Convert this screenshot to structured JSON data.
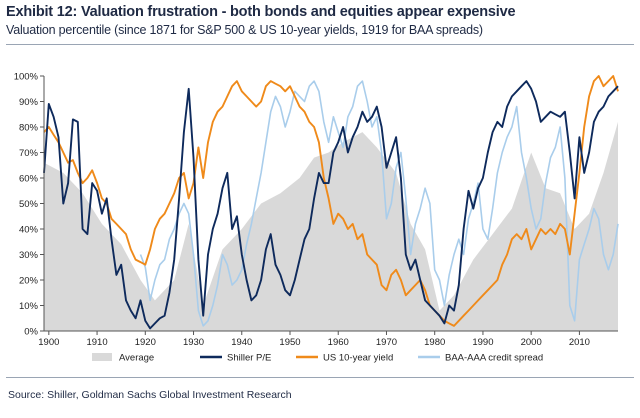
{
  "header": {
    "title": "Exhibit 12: Valuation frustration - both bonds and equities appear expensive",
    "subtitle": "Valuation percentile (since 1871 for S&P 500 & US 10-year yields, 1919 for BAA spreads)"
  },
  "footer": {
    "source": "Source: Shiller, Goldman Sachs Global Investment Research"
  },
  "colors": {
    "average": "#d9d9d9",
    "shiller": "#0e2a5c",
    "us10y": "#ef8a1a",
    "baa": "#a9cdeb",
    "axis": "#555555"
  },
  "chart_data": {
    "type": "line",
    "title": "Exhibit 12: Valuation frustration - both bonds and equities appear expensive",
    "subtitle": "Valuation percentile (since 1871 for S&P 500 & US 10-year yields, 1919 for BAA spreads)",
    "xlim": [
      1899,
      2018
    ],
    "ylim": [
      0,
      100
    ],
    "x_ticks": [
      1900,
      1910,
      1920,
      1930,
      1940,
      1950,
      1960,
      1970,
      1980,
      1990,
      2000,
      2010
    ],
    "x_tick_labels": [
      "1900",
      "1910",
      "1920",
      "1930",
      "1940",
      "1950",
      "1960",
      "1970",
      "1980",
      "1990",
      "2000",
      "2010"
    ],
    "y_ticks": [
      0,
      10,
      20,
      30,
      40,
      50,
      60,
      70,
      80,
      90,
      100
    ],
    "y_tick_labels": [
      "0%",
      "10%",
      "20%",
      "30%",
      "40%",
      "50%",
      "60%",
      "70%",
      "80%",
      "90%",
      "100%"
    ],
    "legend_position": "bottom",
    "grid": false,
    "series": [
      {
        "name": "Average",
        "style": "area",
        "x": [
          1899,
          1903,
          1907,
          1911,
          1915,
          1919,
          1922,
          1926,
          1929,
          1932,
          1936,
          1940,
          1944,
          1948,
          1952,
          1955,
          1958,
          1961,
          1965,
          1968,
          1972,
          1975,
          1978,
          1981,
          1984,
          1988,
          1992,
          1996,
          2000,
          2003,
          2006,
          2009,
          2012,
          2015,
          2018
        ],
        "y": [
          66,
          62,
          54,
          42,
          34,
          20,
          12,
          20,
          42,
          10,
          32,
          40,
          50,
          54,
          60,
          68,
          70,
          74,
          78,
          72,
          62,
          42,
          32,
          8,
          14,
          28,
          38,
          48,
          70,
          56,
          54,
          40,
          46,
          62,
          82
        ]
      },
      {
        "name": "Shiller P/E",
        "style": "line",
        "x": [
          1899,
          1900,
          1901,
          1902,
          1903,
          1904,
          1905,
          1906,
          1907,
          1908,
          1909,
          1910,
          1911,
          1912,
          1913,
          1914,
          1915,
          1916,
          1917,
          1918,
          1919,
          1920,
          1921,
          1922,
          1923,
          1924,
          1925,
          1926,
          1927,
          1928,
          1929,
          1930,
          1931,
          1932,
          1933,
          1934,
          1935,
          1936,
          1937,
          1938,
          1939,
          1940,
          1941,
          1942,
          1943,
          1944,
          1945,
          1946,
          1947,
          1948,
          1949,
          1950,
          1951,
          1952,
          1953,
          1954,
          1955,
          1956,
          1957,
          1958,
          1959,
          1960,
          1961,
          1962,
          1963,
          1964,
          1965,
          1966,
          1967,
          1968,
          1969,
          1970,
          1971,
          1972,
          1973,
          1974,
          1975,
          1976,
          1977,
          1978,
          1979,
          1980,
          1981,
          1982,
          1983,
          1984,
          1985,
          1986,
          1987,
          1988,
          1989,
          1990,
          1991,
          1992,
          1993,
          1994,
          1995,
          1996,
          1997,
          1998,
          1999,
          2000,
          2001,
          2002,
          2003,
          2004,
          2005,
          2006,
          2007,
          2008,
          2009,
          2010,
          2011,
          2012,
          2013,
          2014,
          2015,
          2016,
          2017,
          2018
        ],
        "y": [
          62,
          89,
          84,
          76,
          50,
          58,
          83,
          82,
          40,
          38,
          58,
          55,
          46,
          52,
          36,
          22,
          26,
          12,
          8,
          5,
          12,
          4,
          1,
          3,
          5,
          6,
          15,
          28,
          52,
          78,
          95,
          68,
          28,
          6,
          30,
          40,
          46,
          56,
          62,
          40,
          45,
          30,
          20,
          12,
          14,
          20,
          32,
          38,
          26,
          22,
          16,
          14,
          20,
          28,
          36,
          40,
          52,
          62,
          58,
          58,
          70,
          74,
          80,
          70,
          76,
          80,
          86,
          82,
          84,
          88,
          80,
          64,
          70,
          76,
          60,
          30,
          24,
          28,
          20,
          12,
          10,
          8,
          6,
          3,
          10,
          8,
          18,
          40,
          55,
          48,
          56,
          60,
          70,
          78,
          82,
          80,
          88,
          92,
          94,
          96,
          98,
          95,
          90,
          82,
          84,
          86,
          85,
          84,
          86,
          70,
          52,
          76,
          62,
          70,
          82,
          86,
          88,
          92,
          94,
          96
        ]
      },
      {
        "name": "US 10-year yield",
        "style": "line",
        "x": [
          1899,
          1900,
          1901,
          1902,
          1903,
          1904,
          1905,
          1906,
          1907,
          1908,
          1909,
          1910,
          1911,
          1912,
          1913,
          1914,
          1915,
          1916,
          1917,
          1918,
          1919,
          1920,
          1921,
          1922,
          1923,
          1924,
          1925,
          1926,
          1927,
          1928,
          1929,
          1930,
          1931,
          1932,
          1933,
          1934,
          1935,
          1936,
          1937,
          1938,
          1939,
          1940,
          1941,
          1942,
          1943,
          1944,
          1945,
          1946,
          1947,
          1948,
          1949,
          1950,
          1951,
          1952,
          1953,
          1954,
          1955,
          1956,
          1957,
          1958,
          1959,
          1960,
          1961,
          1962,
          1963,
          1964,
          1965,
          1966,
          1967,
          1968,
          1969,
          1970,
          1971,
          1972,
          1973,
          1974,
          1975,
          1976,
          1977,
          1978,
          1979,
          1980,
          1981,
          1982,
          1983,
          1984,
          1985,
          1986,
          1987,
          1988,
          1989,
          1990,
          1991,
          1992,
          1993,
          1994,
          1995,
          1996,
          1997,
          1998,
          1999,
          2000,
          2001,
          2002,
          2003,
          2004,
          2005,
          2006,
          2007,
          2008,
          2009,
          2010,
          2011,
          2012,
          2013,
          2014,
          2015,
          2016,
          2017,
          2018
        ],
        "y": [
          78,
          80,
          77,
          74,
          70,
          66,
          67,
          62,
          58,
          60,
          63,
          58,
          52,
          50,
          44,
          42,
          40,
          38,
          32,
          28,
          27,
          26,
          32,
          40,
          44,
          46,
          50,
          54,
          60,
          62,
          52,
          58,
          72,
          60,
          74,
          82,
          86,
          88,
          92,
          96,
          98,
          94,
          92,
          90,
          88,
          90,
          96,
          98,
          97,
          96,
          94,
          96,
          92,
          88,
          86,
          82,
          80,
          74,
          60,
          52,
          42,
          46,
          44,
          40,
          42,
          36,
          38,
          30,
          28,
          26,
          18,
          16,
          22,
          24,
          20,
          14,
          16,
          18,
          20,
          16,
          10,
          8,
          6,
          4,
          3,
          2,
          4,
          6,
          8,
          10,
          12,
          14,
          16,
          18,
          20,
          26,
          30,
          36,
          38,
          36,
          40,
          32,
          36,
          40,
          38,
          40,
          38,
          42,
          40,
          30,
          46,
          62,
          80,
          92,
          98,
          100,
          96,
          98,
          100,
          94
        ]
      },
      {
        "name": "BAA-AAA credit spread",
        "style": "line",
        "x": [
          1919,
          1920,
          1921,
          1922,
          1923,
          1924,
          1925,
          1926,
          1927,
          1928,
          1929,
          1930,
          1931,
          1932,
          1933,
          1934,
          1935,
          1936,
          1937,
          1938,
          1939,
          1940,
          1941,
          1942,
          1943,
          1944,
          1945,
          1946,
          1947,
          1948,
          1949,
          1950,
          1951,
          1952,
          1953,
          1954,
          1955,
          1956,
          1957,
          1958,
          1959,
          1960,
          1961,
          1962,
          1963,
          1964,
          1965,
          1966,
          1967,
          1968,
          1969,
          1970,
          1971,
          1972,
          1973,
          1974,
          1975,
          1976,
          1977,
          1978,
          1979,
          1980,
          1981,
          1982,
          1983,
          1984,
          1985,
          1986,
          1987,
          1988,
          1989,
          1990,
          1991,
          1992,
          1993,
          1994,
          1995,
          1996,
          1997,
          1998,
          1999,
          2000,
          2001,
          2002,
          2003,
          2004,
          2005,
          2006,
          2007,
          2008,
          2009,
          2010,
          2011,
          2012,
          2013,
          2014,
          2015,
          2016,
          2017,
          2018
        ],
        "y": [
          30,
          25,
          12,
          20,
          26,
          28,
          36,
          40,
          46,
          50,
          46,
          30,
          8,
          2,
          4,
          10,
          18,
          30,
          26,
          18,
          20,
          24,
          34,
          42,
          52,
          62,
          74,
          86,
          92,
          88,
          80,
          86,
          94,
          92,
          90,
          96,
          98,
          94,
          82,
          74,
          84,
          78,
          72,
          84,
          88,
          96,
          98,
          90,
          80,
          84,
          70,
          44,
          50,
          64,
          70,
          52,
          30,
          42,
          48,
          56,
          50,
          24,
          20,
          10,
          22,
          30,
          36,
          30,
          44,
          50,
          58,
          40,
          36,
          48,
          62,
          70,
          76,
          80,
          88,
          70,
          60,
          48,
          40,
          44,
          58,
          68,
          72,
          80,
          60,
          10,
          4,
          28,
          34,
          40,
          48,
          44,
          30,
          24,
          30,
          42
        ]
      }
    ]
  }
}
